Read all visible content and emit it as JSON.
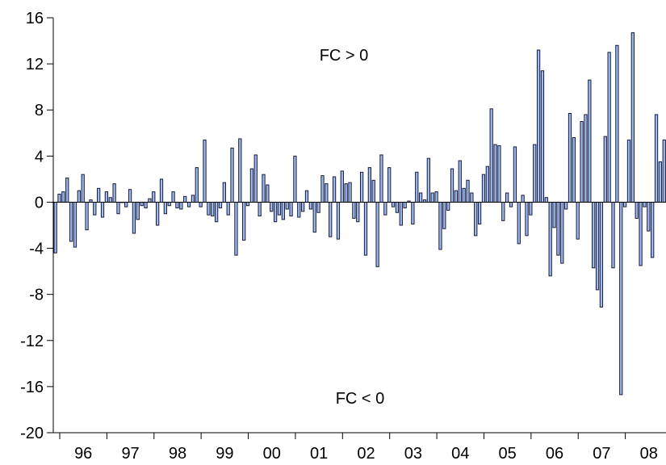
{
  "chart_data": {
    "type": "bar",
    "title": "",
    "xlabel": "",
    "ylabel": "",
    "ylim": [
      -20,
      16
    ],
    "y_ticks": [
      "16",
      "12",
      "8",
      "4",
      "0",
      "-4",
      "-8",
      "-12",
      "-16",
      "-20"
    ],
    "x_ticks": [
      "96",
      "97",
      "98",
      "99",
      "00",
      "01",
      "02",
      "03",
      "04",
      "05",
      "06",
      "07",
      "08"
    ],
    "grid": false,
    "annotations": [
      "FC > 0",
      "FC < 0"
    ],
    "bar_color": "#9dbdf0",
    "edge_color": "#1a1a3a",
    "values": [
      -4.4,
      0.7,
      0.9,
      2.1,
      -3.4,
      -3.9,
      1.0,
      2.4,
      -2.4,
      0.2,
      -1.1,
      1.2,
      -1.3,
      0.9,
      0.4,
      1.6,
      -1.0,
      0.0,
      -0.4,
      1.1,
      -2.7,
      -1.5,
      -0.3,
      -0.5,
      0.3,
      0.9,
      -2.0,
      2.0,
      -1.0,
      -0.3,
      0.9,
      -0.5,
      -0.6,
      0.5,
      -0.4,
      0.6,
      3.0,
      -0.4,
      5.4,
      -1.1,
      -1.2,
      -1.7,
      -0.5,
      1.7,
      -1.1,
      4.7,
      -4.6,
      5.5,
      -3.3,
      -0.3,
      2.9,
      4.1,
      -1.2,
      2.4,
      1.5,
      -0.8,
      -1.7,
      -1.1,
      -1.5,
      -0.6,
      -1.2,
      4.0,
      -1.3,
      -0.8,
      1.0,
      -0.6,
      -2.6,
      -0.9,
      2.3,
      1.6,
      -3.0,
      2.2,
      -3.2,
      2.7,
      1.6,
      1.7,
      -1.4,
      -1.7,
      2.6,
      -4.6,
      3.0,
      1.9,
      -5.6,
      4.1,
      -1.1,
      3.0,
      -0.4,
      -0.9,
      -2.0,
      -0.5,
      0.1,
      -1.9,
      2.6,
      0.8,
      0.2,
      3.8,
      0.8,
      0.9,
      -4.1,
      -2.3,
      -0.7,
      2.9,
      1.0,
      3.6,
      1.2,
      1.9,
      0.8,
      -2.9,
      -1.9,
      2.4,
      3.1,
      8.1,
      5.0,
      4.9,
      -1.6,
      0.8,
      -0.4,
      4.8,
      -3.6,
      0.6,
      -2.9,
      -1.1,
      5.0,
      13.2,
      11.4,
      0.4,
      -6.4,
      -2.2,
      -4.6,
      -5.3,
      -0.6,
      7.7,
      5.6,
      -3.2,
      7.0,
      7.6,
      10.6,
      -5.7,
      -7.6,
      -9.1,
      5.7,
      13.0,
      -5.7,
      13.6,
      -16.7,
      -0.4,
      5.4,
      14.7,
      -1.4,
      -5.5,
      -0.4,
      -2.5,
      -4.8,
      7.6,
      3.5,
      5.4
    ]
  }
}
